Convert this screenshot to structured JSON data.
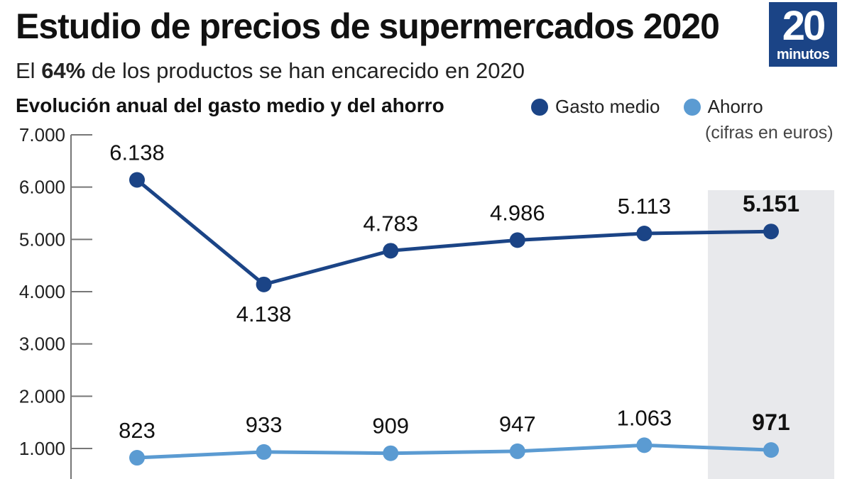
{
  "header": {
    "title": "Estudio de precios de supermercados 2020",
    "subtitle_prefix": "El ",
    "subtitle_highlight": "64%",
    "subtitle_suffix": " de los productos se han encarecido en 2020"
  },
  "logo": {
    "number": "20",
    "text": "minutos"
  },
  "colors": {
    "gasto": "#1b4486",
    "ahorro": "#5b9bd2",
    "highlight": "#e8e9ec",
    "logo": "#1b4486"
  },
  "chart_data": {
    "type": "line",
    "title": "Evolución anual del gasto medio y del ahorro",
    "note": "(cifras en euros)",
    "xlabel": "",
    "ylabel": "",
    "categories": [
      "",
      "",
      "",
      "",
      "",
      ""
    ],
    "ylim": [
      0,
      7000
    ],
    "yticks": [
      1000,
      2000,
      3000,
      4000,
      5000,
      6000,
      7000
    ],
    "ytick_labels": [
      "1.000",
      "2.000",
      "3.000",
      "4.000",
      "5.000",
      "6.000",
      "7.000"
    ],
    "highlight_index": 5,
    "series": [
      {
        "name": "Gasto medio",
        "values": [
          6138,
          4138,
          4783,
          4986,
          5113,
          5151
        ],
        "labels": [
          "6.138",
          "4.138",
          "4.783",
          "4.986",
          "5.113",
          "5.151"
        ]
      },
      {
        "name": "Ahorro",
        "values": [
          823,
          933,
          909,
          947,
          1063,
          971
        ],
        "labels": [
          "823",
          "933",
          "909",
          "947",
          "1.063",
          "971"
        ]
      }
    ],
    "legend": "top-right",
    "grid": false
  }
}
